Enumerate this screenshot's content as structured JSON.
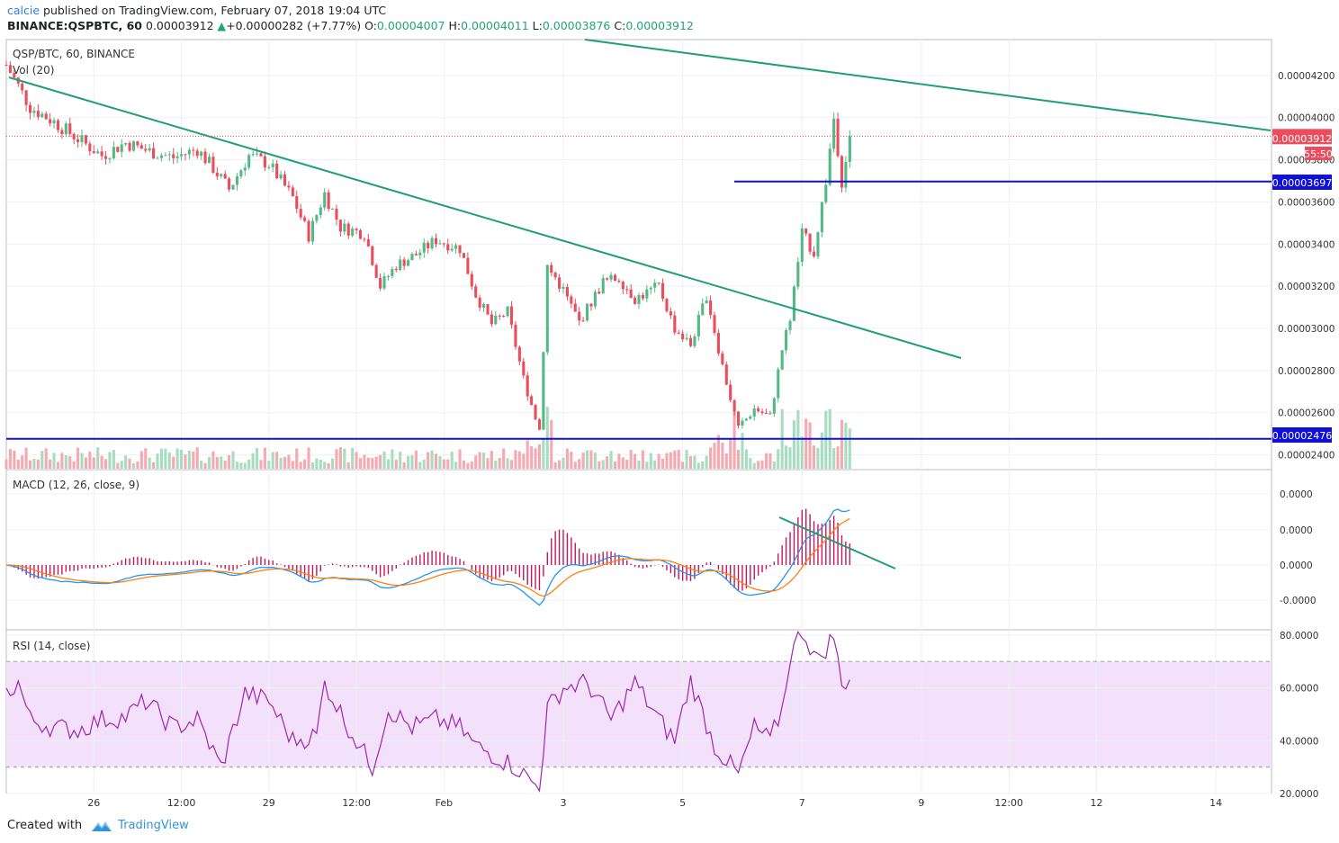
{
  "header": {
    "author": "calcie",
    "published": " published on TradingView.com, February 07, 2018 19:04 UTC",
    "symbol": "BINANCE:QSPBTC, 60",
    "last": "0.00003912",
    "change_arrow": "▲",
    "change": "+0.00000282 (+7.77%)",
    "o_label": "O:",
    "o": "0.00004007",
    "h_label": "H:",
    "h": "0.00004011",
    "l_label": "L:",
    "l": "0.00003876",
    "c_label": "C:",
    "c": "0.00003912"
  },
  "footer": {
    "created_with": "Created with",
    "brand": "TradingView"
  },
  "colors": {
    "up": "#53b987",
    "down": "#eb4d5c",
    "trend": "#1f9e7a",
    "level": "#1010d8",
    "macd": "#2196f3",
    "signal": "#ff7f0e",
    "hist": "#c2185b",
    "rsi": "#9c27b0",
    "rsi_band": "#f3e0fb"
  },
  "chart_data": [
    {
      "type": "candlestick",
      "title": "QSP/BTC, 60, BINANCE",
      "volume_label": "Vol (20)",
      "ylim": [
        2.33e-05,
        4.37e-05
      ],
      "y_ticks": [
        "0.00004200",
        "0.00004000",
        "0.00003800",
        "0.00003600",
        "0.00003400",
        "0.00003200",
        "0.00003000",
        "0.00002800",
        "0.00002600",
        "0.00002400"
      ],
      "y_tick_values": [
        4.2e-05,
        4e-05,
        3.8e-05,
        3.6e-05,
        3.4e-05,
        3.2e-05,
        3e-05,
        2.8e-05,
        2.6e-05,
        2.4e-05
      ],
      "x_ticks": [
        "26",
        "12:00",
        "29",
        "12:00",
        "Feb",
        "3",
        "5",
        "7",
        "9",
        "12:00",
        "12",
        "14"
      ],
      "x_range_hours": [
        0,
        318
      ],
      "x_tick_hours": [
        22,
        44,
        66,
        88,
        110,
        140,
        170,
        200,
        230,
        252,
        274,
        304
      ],
      "last_price_label": "0.00003912",
      "countdown": "55:50",
      "last_price": 3.912e-05,
      "resistance_label": "0.00003697",
      "resistance": 3.697e-05,
      "support_label": "0.00002476",
      "support": 2.476e-05,
      "key_closes": [
        [
          0,
          4.25e-05
        ],
        [
          6,
          4.05e-05
        ],
        [
          12,
          3.98e-05
        ],
        [
          18,
          3.9e-05
        ],
        [
          24,
          3.82e-05
        ],
        [
          30,
          3.88e-05
        ],
        [
          36,
          3.84e-05
        ],
        [
          42,
          3.81e-05
        ],
        [
          48,
          3.85e-05
        ],
        [
          52,
          3.76e-05
        ],
        [
          56,
          3.66e-05
        ],
        [
          61,
          3.82e-05
        ],
        [
          66,
          3.78e-05
        ],
        [
          72,
          3.62e-05
        ],
        [
          76,
          3.44e-05
        ],
        [
          80,
          3.64e-05
        ],
        [
          84,
          3.48e-05
        ],
        [
          90,
          3.45e-05
        ],
        [
          94,
          3.2e-05
        ],
        [
          98,
          3.3e-05
        ],
        [
          103,
          3.35e-05
        ],
        [
          108,
          3.42e-05
        ],
        [
          114,
          3.38e-05
        ],
        [
          118,
          3.16e-05
        ],
        [
          122,
          3.02e-05
        ],
        [
          126,
          3.08e-05
        ],
        [
          130,
          2.76e-05
        ],
        [
          134,
          2.52e-05
        ],
        [
          136,
          3.3e-05
        ],
        [
          140,
          3.18e-05
        ],
        [
          144,
          3.03e-05
        ],
        [
          150,
          3.22e-05
        ],
        [
          154,
          3.24e-05
        ],
        [
          158,
          3.14e-05
        ],
        [
          164,
          3.2e-05
        ],
        [
          168,
          3e-05
        ],
        [
          172,
          2.92e-05
        ],
        [
          176,
          3.16e-05
        ],
        [
          180,
          2.82e-05
        ],
        [
          184,
          2.52e-05
        ],
        [
          188,
          2.62e-05
        ],
        [
          192,
          2.58e-05
        ],
        [
          195,
          2.9e-05
        ],
        [
          197,
          3.05e-05
        ],
        [
          200,
          3.45e-05
        ],
        [
          203,
          3.36e-05
        ],
        [
          206,
          3.7e-05
        ],
        [
          208,
          4e-05
        ],
        [
          210,
          3.7e-05
        ],
        [
          212,
          3.9e-05
        ]
      ]
    },
    {
      "type": "line",
      "title": "MACD (12, 26, close, 9)",
      "y_ticks": [
        "0.0000",
        "0.0000",
        "0.0000",
        "-0.0000"
      ],
      "series": [
        {
          "name": "MACD"
        },
        {
          "name": "Signal"
        },
        {
          "name": "Histogram"
        }
      ]
    },
    {
      "type": "line",
      "title": "RSI (14, close)",
      "ylim": [
        20,
        82
      ],
      "y_ticks": [
        "80.0000",
        "60.0000",
        "40.0000",
        "20.0000"
      ],
      "y_tick_values": [
        80,
        60,
        40,
        20
      ],
      "bands": [
        30,
        70
      ],
      "key_points": [
        [
          0,
          58
        ],
        [
          3,
          62
        ],
        [
          6,
          48
        ],
        [
          12,
          45
        ],
        [
          18,
          44
        ],
        [
          24,
          48
        ],
        [
          30,
          49
        ],
        [
          35,
          55
        ],
        [
          42,
          45
        ],
        [
          48,
          48
        ],
        [
          54,
          30
        ],
        [
          60,
          58
        ],
        [
          66,
          55
        ],
        [
          72,
          40
        ],
        [
          78,
          42
        ],
        [
          80,
          62
        ],
        [
          86,
          45
        ],
        [
          92,
          30
        ],
        [
          96,
          52
        ],
        [
          102,
          45
        ],
        [
          108,
          48
        ],
        [
          114,
          45
        ],
        [
          118,
          38
        ],
        [
          122,
          35
        ],
        [
          128,
          30
        ],
        [
          134,
          22
        ],
        [
          136,
          52
        ],
        [
          140,
          60
        ],
        [
          146,
          62
        ],
        [
          152,
          48
        ],
        [
          158,
          62
        ],
        [
          164,
          48
        ],
        [
          168,
          40
        ],
        [
          172,
          63
        ],
        [
          178,
          38
        ],
        [
          184,
          27
        ],
        [
          188,
          45
        ],
        [
          192,
          40
        ],
        [
          195,
          52
        ],
        [
          197,
          72
        ],
        [
          200,
          82
        ],
        [
          204,
          70
        ],
        [
          208,
          80
        ],
        [
          210,
          60
        ],
        [
          212,
          65
        ]
      ]
    }
  ]
}
